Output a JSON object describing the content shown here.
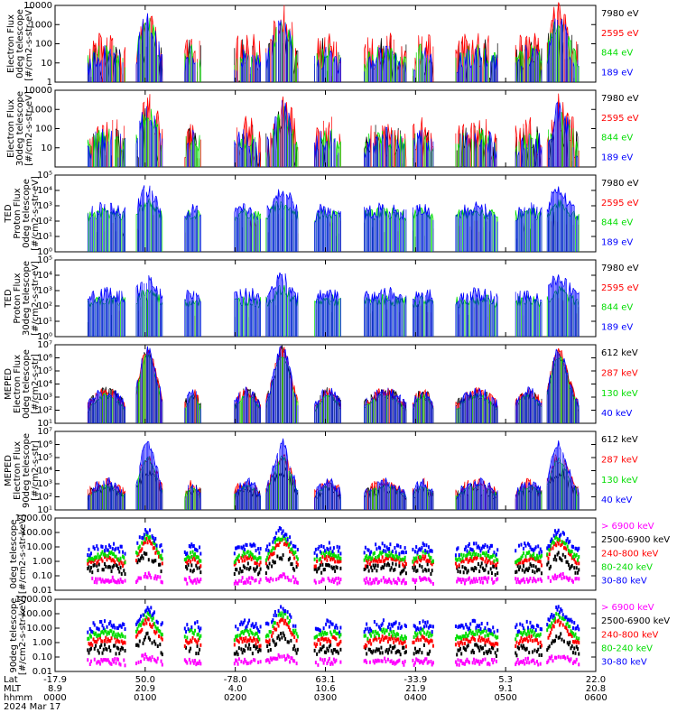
{
  "colors": {
    "black": "#000000",
    "red": "#ff0000",
    "green": "#00dd00",
    "blue": "#0000ff",
    "magenta": "#ff00ff"
  },
  "chart_data": [
    {
      "type": "line",
      "id": "p1",
      "scale": "log",
      "ylim": [
        1,
        10000
      ],
      "ylabel": [
        "Electron Flux",
        "0deg telescope",
        "[#/cm2-s-str-eV]"
      ],
      "ticks": [
        {
          "v": 1,
          "label": "1"
        },
        {
          "v": 10,
          "label": "10"
        },
        {
          "v": 100,
          "label": "100"
        },
        {
          "v": 1000,
          "label": "1000"
        },
        {
          "v": 10000,
          "label": "10000"
        }
      ],
      "series": [
        {
          "name": "7980 eV",
          "color": "black",
          "seed": 11,
          "base": 8,
          "noise": 1.2,
          "peak": 1.0,
          "sparse": 0.55
        },
        {
          "name": "2595 eV",
          "color": "red",
          "seed": 12,
          "base": 15,
          "noise": 1.0,
          "peak": 1.6,
          "sparse": 0.2
        },
        {
          "name": "844 eV",
          "color": "green",
          "seed": 13,
          "base": 10,
          "noise": 0.5,
          "peak": 1.5,
          "sparse": 0.3
        },
        {
          "name": "189 eV",
          "color": "blue",
          "seed": 14,
          "base": 6,
          "noise": 0.6,
          "peak": 1.7,
          "sparse": 0.3
        }
      ]
    },
    {
      "type": "line",
      "id": "p2",
      "scale": "log",
      "ylim": [
        1,
        10000
      ],
      "ylabel": [
        "Electron Flux",
        "30deg telescope",
        "[#/cm2-s-str-eV]"
      ],
      "ticks": [
        {
          "v": 10,
          "label": "10"
        },
        {
          "v": 100,
          "label": "100"
        },
        {
          "v": 1000,
          "label": "1000"
        },
        {
          "v": 10000,
          "label": "10000"
        }
      ],
      "series": [
        {
          "name": "7980 eV",
          "color": "black",
          "seed": 21,
          "base": 6,
          "noise": 1.2,
          "peak": 1.0,
          "sparse": 0.5
        },
        {
          "name": "2595 eV",
          "color": "red",
          "seed": 22,
          "base": 12,
          "noise": 1.1,
          "peak": 1.4,
          "sparse": 0.25
        },
        {
          "name": "844 eV",
          "color": "green",
          "seed": 23,
          "base": 10,
          "noise": 0.6,
          "peak": 1.3,
          "sparse": 0.3
        },
        {
          "name": "189 eV",
          "color": "blue",
          "seed": 24,
          "base": 8,
          "noise": 0.7,
          "peak": 1.4,
          "sparse": 0.4
        }
      ]
    },
    {
      "type": "line",
      "id": "p3",
      "scale": "log",
      "ylim": [
        1,
        100000
      ],
      "ylabel": [
        "TED",
        "Proton Flux",
        "0deg telescope",
        "[#/cm2-s-str-eV]"
      ],
      "ticks": [
        {
          "v": 1,
          "label": "10⁰"
        },
        {
          "v": 10,
          "label": "10¹"
        },
        {
          "v": 100,
          "label": "10²"
        },
        {
          "v": 1000,
          "label": "10³"
        },
        {
          "v": 10000,
          "label": "10⁴"
        },
        {
          "v": 100000,
          "label": "10⁵"
        }
      ],
      "series": [
        {
          "name": "7980 eV",
          "color": "black",
          "seed": 31,
          "base": 30,
          "noise": 0.8,
          "peak": 0.6,
          "sparse": 0.9
        },
        {
          "name": "2595 eV",
          "color": "red",
          "seed": 32,
          "base": 40,
          "noise": 0.5,
          "peak": 0.6,
          "sparse": 0.85
        },
        {
          "name": "844 eV",
          "color": "green",
          "seed": 33,
          "base": 200,
          "noise": 0.4,
          "peak": 0.6,
          "sparse": 0.0
        },
        {
          "name": "189 eV",
          "color": "blue",
          "seed": 34,
          "base": 250,
          "noise": 0.5,
          "peak": 1.2,
          "sparse": 0.1
        }
      ]
    },
    {
      "type": "line",
      "id": "p4",
      "scale": "log",
      "ylim": [
        1,
        100000
      ],
      "ylabel": [
        "TED",
        "Proton Flux",
        "30deg telescope",
        "[#/cm2-s-str-eV]"
      ],
      "ticks": [
        {
          "v": 1,
          "label": "10⁰"
        },
        {
          "v": 10,
          "label": "10¹"
        },
        {
          "v": 100,
          "label": "10²"
        },
        {
          "v": 1000,
          "label": "10³"
        },
        {
          "v": 10000,
          "label": "10⁴"
        },
        {
          "v": 100000,
          "label": "10⁵"
        }
      ],
      "series": [
        {
          "name": "7980 eV",
          "color": "black",
          "seed": 41,
          "base": 30,
          "noise": 0.8,
          "peak": 0.6,
          "sparse": 0.9
        },
        {
          "name": "2595 eV",
          "color": "red",
          "seed": 42,
          "base": 40,
          "noise": 0.5,
          "peak": 0.6,
          "sparse": 0.9
        },
        {
          "name": "844 eV",
          "color": "green",
          "seed": 43,
          "base": 150,
          "noise": 0.4,
          "peak": 0.6,
          "sparse": 0.0
        },
        {
          "name": "189 eV",
          "color": "blue",
          "seed": 44,
          "base": 250,
          "noise": 0.5,
          "peak": 1.1,
          "sparse": 0.1
        }
      ]
    },
    {
      "type": "line",
      "id": "p5",
      "scale": "log",
      "ylim": [
        10,
        10000000
      ],
      "ylabel": [
        "MEPED",
        "Electron Flux",
        "0deg telescope",
        "[#/cm2-s-str]"
      ],
      "ticks": [
        {
          "v": 10,
          "label": "10¹"
        },
        {
          "v": 100,
          "label": "10²"
        },
        {
          "v": 1000,
          "label": "10³"
        },
        {
          "v": 10000,
          "label": "10⁴"
        },
        {
          "v": 100000,
          "label": "10⁵"
        },
        {
          "v": 1000000,
          "label": "10⁶"
        },
        {
          "v": 10000000,
          "label": "10⁷"
        }
      ],
      "series": [
        {
          "name": "612 keV",
          "color": "black",
          "seed": 51,
          "base": 150,
          "noise": 0.5,
          "peak": 3.2,
          "sparse": 0.1
        },
        {
          "name": "287 keV",
          "color": "red",
          "seed": 52,
          "base": 180,
          "noise": 0.4,
          "peak": 3.2,
          "sparse": 0.1
        },
        {
          "name": "130 keV",
          "color": "green",
          "seed": 53,
          "base": 100,
          "noise": 0.2,
          "peak": 3.1,
          "sparse": 0.05
        },
        {
          "name": "40 keV",
          "color": "blue",
          "seed": 54,
          "base": 200,
          "noise": 0.4,
          "peak": 3.2,
          "sparse": 0.2
        }
      ]
    },
    {
      "type": "line",
      "id": "p6",
      "scale": "log",
      "ylim": [
        10,
        10000000
      ],
      "ylabel": [
        "MEPED",
        "Electron Flux",
        "90deg telescope",
        "[#/cm2-s-str]"
      ],
      "ticks": [
        {
          "v": 10,
          "label": "10¹"
        },
        {
          "v": 100,
          "label": "10²"
        },
        {
          "v": 1000,
          "label": "10³"
        },
        {
          "v": 10000,
          "label": "10⁴"
        },
        {
          "v": 100000,
          "label": "10⁵"
        },
        {
          "v": 1000000,
          "label": "10⁶"
        },
        {
          "v": 10000000,
          "label": "10⁷"
        }
      ],
      "series": [
        {
          "name": "612 keV",
          "color": "black",
          "seed": 61,
          "base": 120,
          "noise": 0.5,
          "peak": 1.4,
          "sparse": 0.1
        },
        {
          "name": "287 keV",
          "color": "red",
          "seed": 62,
          "base": 150,
          "noise": 0.5,
          "peak": 2.2,
          "sparse": 0.1
        },
        {
          "name": "130 keV",
          "color": "green",
          "seed": 63,
          "base": 100,
          "noise": 0.2,
          "peak": 2.2,
          "sparse": 0.05
        },
        {
          "name": "40 keV",
          "color": "blue",
          "seed": 64,
          "base": 120,
          "noise": 0.4,
          "peak": 3.0,
          "sparse": 0.1
        }
      ]
    },
    {
      "type": "scatter",
      "id": "p7",
      "scale": "log",
      "ylim": [
        0.01,
        1000
      ],
      "ylabel": [
        "0deg telescope",
        "[#/cm2-s-str-keV]"
      ],
      "ticks": [
        {
          "v": 0.01,
          "label": "0.01"
        },
        {
          "v": 0.1,
          "label": "0.10"
        },
        {
          "v": 1,
          "label": "1.00"
        },
        {
          "v": 10,
          "label": "10.00"
        },
        {
          "v": 100,
          "label": "100.00"
        },
        {
          "v": 1000,
          "label": "1000.00"
        }
      ],
      "series": [
        {
          "name": "> 6900 keV",
          "color": "magenta",
          "seed": 71,
          "base": 0.04,
          "noise": 0.2,
          "peak": 0.3,
          "sparse": 0.2
        },
        {
          "name": "2500-6900 keV",
          "color": "black",
          "seed": 72,
          "base": 0.2,
          "noise": 0.3,
          "peak": 0.8,
          "sparse": 0.2
        },
        {
          "name": "240-800 keV",
          "color": "red",
          "seed": 73,
          "base": 0.6,
          "noise": 0.2,
          "peak": 1.2,
          "sparse": 0.1
        },
        {
          "name": "80-240 keV",
          "color": "green",
          "seed": 74,
          "base": 1.2,
          "noise": 0.2,
          "peak": 1.2,
          "sparse": 0.1
        },
        {
          "name": "30-80 keV",
          "color": "blue",
          "seed": 75,
          "base": 4,
          "noise": 0.3,
          "peak": 1.1,
          "sparse": 0.2
        }
      ]
    },
    {
      "type": "scatter",
      "id": "p8",
      "scale": "log",
      "ylim": [
        0.01,
        1000
      ],
      "ylabel": [
        "90deg telescope",
        "[#/cm2-s-str-keV]"
      ],
      "ticks": [
        {
          "v": 0.01,
          "label": "0.01"
        },
        {
          "v": 0.1,
          "label": "0.10"
        },
        {
          "v": 1,
          "label": "1.00"
        },
        {
          "v": 10,
          "label": "10.00"
        },
        {
          "v": 100,
          "label": "100.00"
        },
        {
          "v": 1000,
          "label": "1000.00"
        }
      ],
      "series": [
        {
          "name": "> 6900 keV",
          "color": "magenta",
          "seed": 81,
          "base": 0.04,
          "noise": 0.2,
          "peak": 0.3,
          "sparse": 0.2
        },
        {
          "name": "2500-6900 keV",
          "color": "black",
          "seed": 82,
          "base": 0.2,
          "noise": 0.3,
          "peak": 0.8,
          "sparse": 0.2
        },
        {
          "name": "240-800 keV",
          "color": "red",
          "seed": 83,
          "base": 0.7,
          "noise": 0.2,
          "peak": 1.2,
          "sparse": 0.1
        },
        {
          "name": "80-240 keV",
          "color": "green",
          "seed": 84,
          "base": 2,
          "noise": 0.2,
          "peak": 1.2,
          "sparse": 0.1
        },
        {
          "name": "30-80 keV",
          "color": "blue",
          "seed": 85,
          "base": 8,
          "noise": 0.3,
          "peak": 1.0,
          "sparse": 0.2
        }
      ]
    }
  ],
  "passes": [
    {
      "center": 0.17,
      "width": 0.02
    },
    {
      "center": 0.42,
      "width": 0.02
    },
    {
      "center": 0.93,
      "width": 0.02
    }
  ],
  "activity": [
    {
      "from": 0.06,
      "to": 0.13
    },
    {
      "from": 0.15,
      "to": 0.2
    },
    {
      "from": 0.24,
      "to": 0.27
    },
    {
      "from": 0.33,
      "to": 0.38
    },
    {
      "from": 0.39,
      "to": 0.45
    },
    {
      "from": 0.48,
      "to": 0.53
    },
    {
      "from": 0.57,
      "to": 0.65
    },
    {
      "from": 0.66,
      "to": 0.7
    },
    {
      "from": 0.74,
      "to": 0.82
    },
    {
      "from": 0.85,
      "to": 0.9
    },
    {
      "from": 0.91,
      "to": 0.97
    }
  ],
  "xaxis": {
    "row_labels": [
      "Lat",
      "MLT",
      "hhmm"
    ],
    "ticks": [
      {
        "lat": "-17.9",
        "mlt": "8.9",
        "hhmm": "0000"
      },
      {
        "lat": "50.0",
        "mlt": "20.9",
        "hhmm": "0100"
      },
      {
        "lat": "-78.0",
        "mlt": "4.0",
        "hhmm": "0200"
      },
      {
        "lat": "63.1",
        "mlt": "10.6",
        "hhmm": "0300"
      },
      {
        "lat": "-33.9",
        "mlt": "21.9",
        "hhmm": "0400"
      },
      {
        "lat": "5.3",
        "mlt": "9.1",
        "hhmm": "0500"
      },
      {
        "lat": "22.0",
        "mlt": "20.8",
        "hhmm": "0600"
      }
    ],
    "date": "2024 Mar 17"
  }
}
